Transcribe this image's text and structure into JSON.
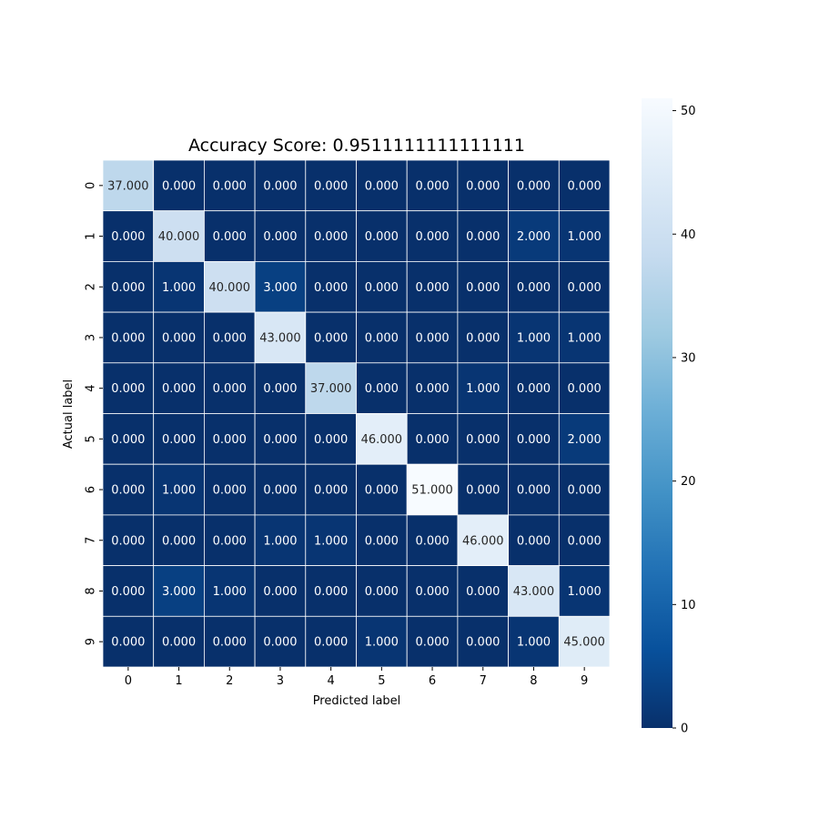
{
  "chart_data": {
    "type": "heatmap",
    "title": "Accuracy Score: 0.9511111111111111",
    "xlabel": "Predicted label",
    "ylabel": "Actual label",
    "x_categories": [
      "0",
      "1",
      "2",
      "3",
      "4",
      "5",
      "6",
      "7",
      "8",
      "9"
    ],
    "y_categories": [
      "0",
      "1",
      "2",
      "3",
      "4",
      "5",
      "6",
      "7",
      "8",
      "9"
    ],
    "values": [
      [
        37,
        0,
        0,
        0,
        0,
        0,
        0,
        0,
        0,
        0
      ],
      [
        0,
        40,
        0,
        0,
        0,
        0,
        0,
        0,
        2,
        1
      ],
      [
        0,
        1,
        40,
        3,
        0,
        0,
        0,
        0,
        0,
        0
      ],
      [
        0,
        0,
        0,
        43,
        0,
        0,
        0,
        0,
        1,
        1
      ],
      [
        0,
        0,
        0,
        0,
        37,
        0,
        0,
        1,
        0,
        0
      ],
      [
        0,
        0,
        0,
        0,
        0,
        46,
        0,
        0,
        0,
        2
      ],
      [
        0,
        1,
        0,
        0,
        0,
        0,
        51,
        0,
        0,
        0
      ],
      [
        0,
        0,
        0,
        1,
        1,
        0,
        0,
        46,
        0,
        0
      ],
      [
        0,
        3,
        1,
        0,
        0,
        0,
        0,
        0,
        43,
        1
      ],
      [
        0,
        0,
        0,
        0,
        0,
        1,
        0,
        0,
        1,
        45
      ]
    ],
    "value_format_decimals": 3,
    "colormap": "Blues_r",
    "color_range": [
      0,
      51
    ],
    "colorbar_ticks": [
      0,
      10,
      20,
      30,
      40,
      50
    ],
    "cell_border_color": "#ffffff",
    "dark_text_color": "#262626",
    "light_text_color": "#ffffff"
  }
}
